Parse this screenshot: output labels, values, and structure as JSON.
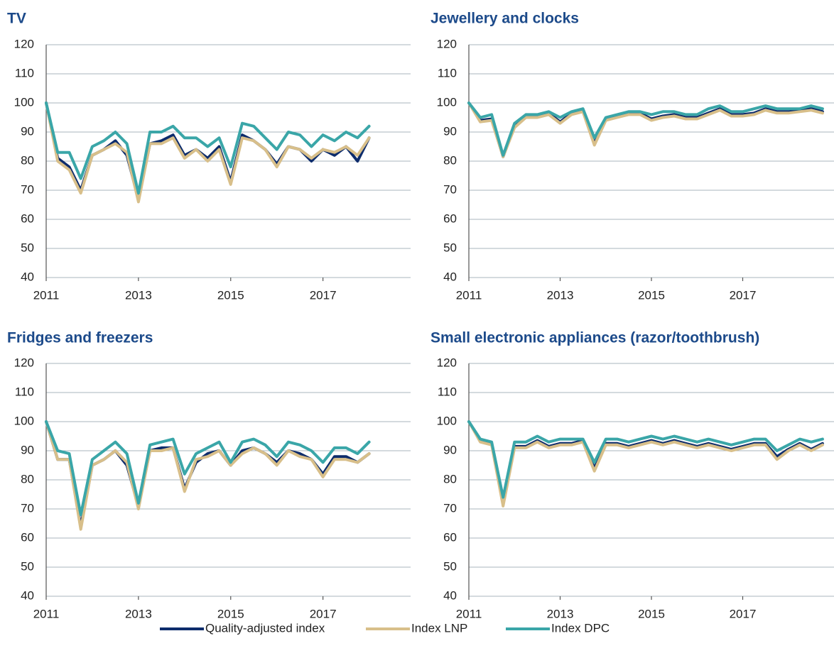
{
  "legend": [
    {
      "name": "Quality-adjusted index",
      "color": "#0d2c6c"
    },
    {
      "name": "Index LNP",
      "color": "#d8bf8a"
    },
    {
      "name": "Index DPC",
      "color": "#3aa6a8"
    }
  ],
  "chart_data": [
    {
      "type": "line",
      "title": "TV",
      "x": [
        2011,
        2011.25,
        2011.5,
        2011.75,
        2012,
        2012.25,
        2012.5,
        2012.75,
        2013,
        2013.25,
        2013.5,
        2013.75,
        2014,
        2014.25,
        2014.5,
        2014.75,
        2015,
        2015.25,
        2015.5,
        2015.75,
        2016,
        2016.25,
        2016.5,
        2016.75,
        2017,
        2017.25,
        2017.5,
        2017.75,
        2018
      ],
      "series": [
        {
          "values": [
            100,
            81,
            78,
            70,
            82,
            84,
            87,
            82,
            67,
            86,
            87,
            89,
            82,
            84,
            81,
            85,
            73,
            89,
            87,
            84,
            79,
            85,
            84,
            80,
            84,
            82,
            85,
            80,
            88
          ]
        },
        {
          "values": [
            100,
            80,
            77,
            69,
            82,
            84,
            86,
            83,
            66,
            86,
            86,
            88,
            81,
            84,
            80,
            84,
            72,
            88,
            87,
            84,
            78,
            85,
            84,
            81,
            84,
            83,
            85,
            82,
            88
          ]
        },
        {
          "values": [
            100,
            83,
            83,
            74,
            85,
            87,
            90,
            86,
            69,
            90,
            90,
            92,
            88,
            88,
            85,
            88,
            78,
            93,
            92,
            88,
            84,
            90,
            89,
            85,
            89,
            87,
            90,
            88,
            92
          ]
        }
      ],
      "xlim": [
        2011,
        2018.9
      ],
      "xticks": [
        2011,
        2013,
        2015,
        2017
      ],
      "ylim": [
        40,
        120
      ],
      "yticks": [
        40,
        50,
        60,
        70,
        80,
        90,
        100,
        110,
        120
      ],
      "grid": true
    },
    {
      "type": "line",
      "title": "Jewellery and clocks",
      "x": [
        2011,
        2011.25,
        2011.5,
        2011.75,
        2012,
        2012.25,
        2012.5,
        2012.75,
        2013,
        2013.25,
        2013.5,
        2013.75,
        2014,
        2014.25,
        2014.5,
        2014.75,
        2015,
        2015.25,
        2015.5,
        2015.75,
        2016,
        2016.25,
        2016.5,
        2016.75,
        2017,
        2017.25,
        2017.5,
        2017.75,
        2018,
        2018.25,
        2018.5,
        2018.75
      ],
      "series": [
        {
          "values": [
            100,
            94,
            94.5,
            81.5,
            92,
            95.5,
            95.5,
            96.5,
            93.5,
            96.5,
            97.5,
            86,
            94.5,
            95.5,
            96.5,
            96.5,
            94.5,
            95.5,
            96,
            95,
            95,
            96.5,
            98,
            96,
            96,
            96.5,
            98,
            97,
            97,
            97.5,
            98,
            97
          ]
        },
        {
          "values": [
            100,
            93.5,
            94,
            81.5,
            91.5,
            95,
            95,
            96,
            93,
            96,
            97,
            85.5,
            94,
            95,
            96,
            96,
            94,
            95,
            95.5,
            94.5,
            94.5,
            96,
            97.5,
            95.5,
            95.5,
            96,
            97.5,
            96.5,
            96.5,
            97,
            97.5,
            96.5
          ]
        },
        {
          "values": [
            100,
            95,
            96,
            82,
            93,
            96,
            96,
            97,
            95,
            97,
            98,
            88,
            95,
            96,
            97,
            97,
            96,
            97,
            97,
            96,
            96,
            98,
            99,
            97,
            97,
            98,
            99,
            98,
            98,
            98,
            99,
            98
          ]
        }
      ],
      "xlim": [
        2011,
        2019
      ],
      "xticks": [
        2011,
        2013,
        2015,
        2017
      ],
      "ylim": [
        40,
        120
      ],
      "yticks": [
        40,
        50,
        60,
        70,
        80,
        90,
        100,
        110,
        120
      ],
      "grid": true
    },
    {
      "type": "line",
      "title": "Fridges and freezers",
      "x": [
        2011,
        2011.25,
        2011.5,
        2011.75,
        2012,
        2012.25,
        2012.5,
        2012.75,
        2013,
        2013.25,
        2013.5,
        2013.75,
        2014,
        2014.25,
        2014.5,
        2014.75,
        2015,
        2015.25,
        2015.5,
        2015.75,
        2016,
        2016.25,
        2016.5,
        2016.75,
        2017,
        2017.25,
        2017.5,
        2017.75,
        2018
      ],
      "series": [
        {
          "values": [
            100,
            87,
            87,
            64,
            85,
            87,
            90,
            85,
            71,
            90,
            91,
            91,
            77,
            86,
            89,
            90,
            85,
            90,
            91,
            89,
            86,
            90,
            89,
            87,
            82,
            88,
            88,
            86,
            89
          ]
        },
        {
          "values": [
            100,
            87,
            87,
            63,
            85,
            87,
            90,
            86,
            70,
            90,
            90,
            91,
            76,
            87,
            88,
            90,
            85,
            89,
            91,
            89,
            85,
            90,
            88,
            87,
            81,
            87,
            87,
            86,
            89
          ]
        },
        {
          "values": [
            100,
            90,
            89,
            68,
            87,
            90,
            93,
            89,
            72,
            92,
            93,
            94,
            82,
            89,
            91,
            93,
            86,
            93,
            94,
            92,
            88,
            93,
            92,
            90,
            86,
            91,
            91,
            89,
            93
          ]
        }
      ],
      "xlim": [
        2011,
        2018.9
      ],
      "xticks": [
        2011,
        2013,
        2015,
        2017
      ],
      "ylim": [
        40,
        120
      ],
      "yticks": [
        40,
        50,
        60,
        70,
        80,
        90,
        100,
        110,
        120
      ],
      "grid": true
    },
    {
      "type": "line",
      "title": "Small electronic appliances (razor/toothbrush)",
      "x": [
        2011,
        2011.25,
        2011.5,
        2011.75,
        2012,
        2012.25,
        2012.5,
        2012.75,
        2013,
        2013.25,
        2013.5,
        2013.75,
        2014,
        2014.25,
        2014.5,
        2014.75,
        2015,
        2015.25,
        2015.5,
        2015.75,
        2016,
        2016.25,
        2016.5,
        2016.75,
        2017,
        2017.25,
        2017.5,
        2017.75,
        2018,
        2018.25,
        2018.5,
        2018.75
      ],
      "series": [
        {
          "values": [
            100,
            93.5,
            92.5,
            72,
            91.5,
            91.5,
            93.5,
            91.5,
            92.5,
            92.5,
            93.5,
            84,
            92.5,
            92.5,
            91.5,
            92.5,
            93.5,
            92.5,
            93.5,
            92.5,
            91.5,
            92.5,
            91.5,
            90.5,
            91.5,
            92.5,
            92.5,
            88,
            90.5,
            92.5,
            90.5,
            92.5
          ]
        },
        {
          "values": [
            100,
            93,
            92,
            71,
            91,
            91,
            93,
            91,
            92,
            92,
            93,
            83,
            92,
            92,
            91,
            92,
            93,
            92,
            93,
            92,
            91,
            92,
            91,
            90,
            91,
            92,
            92,
            87,
            90,
            92,
            90,
            92
          ]
        },
        {
          "values": [
            100,
            94,
            93,
            74,
            93,
            93,
            95,
            93,
            94,
            94,
            94,
            86,
            94,
            94,
            93,
            94,
            95,
            94,
            95,
            94,
            93,
            94,
            93,
            92,
            93,
            94,
            94,
            90,
            92,
            94,
            93,
            94
          ]
        }
      ],
      "xlim": [
        2011,
        2019
      ],
      "xticks": [
        2011,
        2013,
        2015,
        2017
      ],
      "ylim": [
        40,
        120
      ],
      "yticks": [
        40,
        50,
        60,
        70,
        80,
        90,
        100,
        110,
        120
      ],
      "grid": true
    }
  ]
}
